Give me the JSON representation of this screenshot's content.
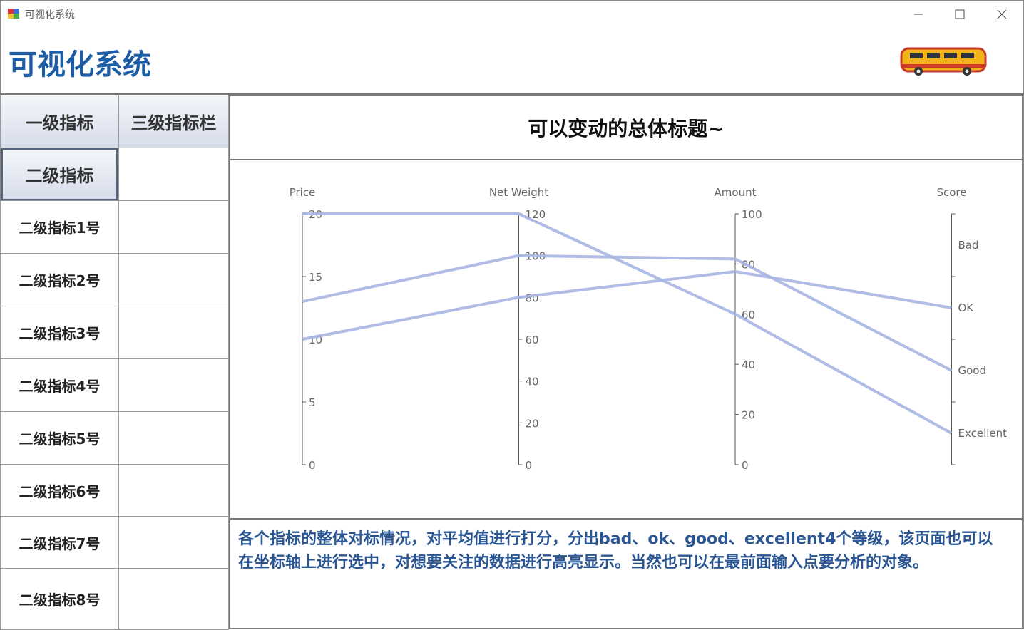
{
  "window": {
    "title": "可视化系统"
  },
  "header": {
    "title": "可视化系统"
  },
  "sidebar": {
    "level1": "一级指标",
    "level3": "三级指标栏",
    "level2": "二级指标",
    "items": [
      "二级指标1号",
      "二级指标2号",
      "二级指标3号",
      "二级指标4号",
      "二级指标5号",
      "二级指标6号",
      "二级指标7号",
      "二级指标8号"
    ]
  },
  "panel_title": "可以变动的总体标题~",
  "chart_data": {
    "type": "parallel",
    "color": "#a9b5e3",
    "axes": [
      {
        "name": "Price",
        "lim": [
          0,
          20
        ],
        "ticks": [
          0,
          5,
          10,
          15,
          20
        ]
      },
      {
        "name": "Net Weight",
        "lim": [
          0,
          120
        ],
        "ticks": [
          0,
          20,
          40,
          60,
          80,
          100,
          120
        ]
      },
      {
        "name": "Amount",
        "lim": [
          0,
          100
        ],
        "ticks": [
          0,
          20,
          40,
          60,
          80,
          100
        ]
      },
      {
        "name": "Score",
        "categories": [
          "Excellent",
          "Good",
          "OK",
          "Bad"
        ]
      }
    ],
    "series": [
      {
        "values": [
          20,
          120,
          60,
          "Excellent"
        ]
      },
      {
        "values": [
          13,
          100,
          82,
          "Good"
        ]
      },
      {
        "values": [
          10,
          80,
          77,
          "OK"
        ]
      }
    ]
  },
  "description": "各个指标的整体对标情况，对平均值进行打分，分出bad、ok、good、excellent4个等级，该页面也可以在坐标轴上进行选中，对想要关注的数据进行高亮显示。当然也可以在最前面输入点要分析的对象。"
}
